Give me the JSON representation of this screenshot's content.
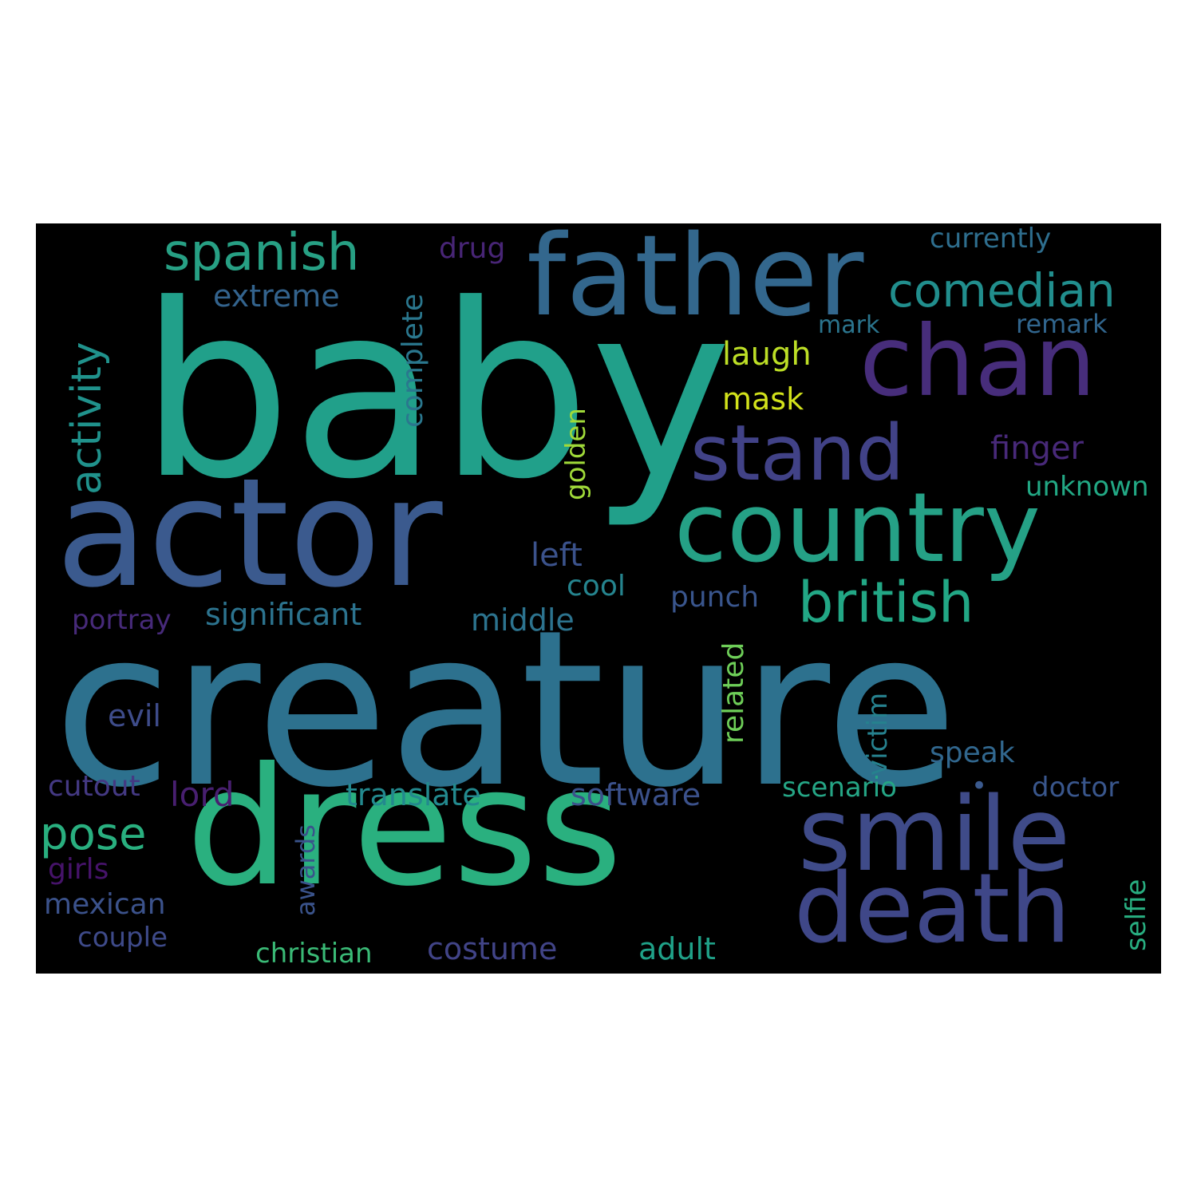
{
  "background": "#000000",
  "words": [
    {
      "id": "baby",
      "text": "baby",
      "color": "#21a08a"
    },
    {
      "id": "creature",
      "text": "creature",
      "color": "#2d718e"
    },
    {
      "id": "actor",
      "text": "actor",
      "color": "#3b5a8e"
    },
    {
      "id": "dress",
      "text": "dress",
      "color": "#2ab07f"
    },
    {
      "id": "father",
      "text": "father",
      "color": "#33678d"
    },
    {
      "id": "chan",
      "text": "chan",
      "color": "#472d7b"
    },
    {
      "id": "country",
      "text": "country",
      "color": "#25a186"
    },
    {
      "id": "smile",
      "text": "smile",
      "color": "#3f4b89"
    },
    {
      "id": "death",
      "text": "death",
      "color": "#3f4788"
    },
    {
      "id": "stand",
      "text": "stand",
      "color": "#414287"
    },
    {
      "id": "spanish",
      "text": "spanish",
      "color": "#27a084"
    },
    {
      "id": "comedian",
      "text": "comedian",
      "color": "#218e8d"
    },
    {
      "id": "british",
      "text": "british",
      "color": "#22a785"
    },
    {
      "id": "activity",
      "text": "activity",
      "color": "#20928c"
    },
    {
      "id": "pose",
      "text": "pose",
      "color": "#29af7f"
    },
    {
      "id": "significant",
      "text": "significant",
      "color": "#2c738e"
    },
    {
      "id": "translate",
      "text": "translate",
      "color": "#23898e"
    },
    {
      "id": "software",
      "text": "software",
      "color": "#3b518b"
    },
    {
      "id": "extreme",
      "text": "extreme",
      "color": "#33638d"
    },
    {
      "id": "drug",
      "text": "drug",
      "color": "#482576"
    },
    {
      "id": "currently",
      "text": "currently",
      "color": "#2e6e8e"
    },
    {
      "id": "mark",
      "text": "mark",
      "color": "#2b758e"
    },
    {
      "id": "remark",
      "text": "remark",
      "color": "#31668e"
    },
    {
      "id": "laugh",
      "text": "laugh",
      "color": "#bddf26"
    },
    {
      "id": "mask",
      "text": "mask",
      "color": "#d2e21b"
    },
    {
      "id": "complete",
      "text": "complete",
      "color": "#2a778e"
    },
    {
      "id": "finger",
      "text": "finger",
      "color": "#482979"
    },
    {
      "id": "golden",
      "text": "golden",
      "color": "#a0da39"
    },
    {
      "id": "unknown",
      "text": "unknown",
      "color": "#22a884"
    },
    {
      "id": "left",
      "text": "left",
      "color": "#3b528b"
    },
    {
      "id": "cool",
      "text": "cool",
      "color": "#25848e"
    },
    {
      "id": "punch",
      "text": "punch",
      "color": "#39558c"
    },
    {
      "id": "middle",
      "text": "middle",
      "color": "#2c738e"
    },
    {
      "id": "portray",
      "text": "portray",
      "color": "#472a7a"
    },
    {
      "id": "related",
      "text": "related",
      "color": "#6ece58"
    },
    {
      "id": "victim",
      "text": "victim",
      "color": "#26818e"
    },
    {
      "id": "evil",
      "text": "evil",
      "color": "#3e4c8a"
    },
    {
      "id": "speak",
      "text": "speak",
      "color": "#31678e"
    },
    {
      "id": "cutout",
      "text": "cutout",
      "color": "#443983"
    },
    {
      "id": "lord",
      "text": "lord",
      "color": "#481f70"
    },
    {
      "id": "scenario",
      "text": "scenario",
      "color": "#25a585"
    },
    {
      "id": "doctor",
      "text": "doctor",
      "color": "#39568c"
    },
    {
      "id": "selfie",
      "text": "selfie",
      "color": "#28ae80"
    },
    {
      "id": "girls",
      "text": "girls",
      "color": "#46136a"
    },
    {
      "id": "awards",
      "text": "awards",
      "color": "#3a538b"
    },
    {
      "id": "mexican",
      "text": "mexican",
      "color": "#3b528b"
    },
    {
      "id": "couple",
      "text": "couple",
      "color": "#3e4a89"
    },
    {
      "id": "christian",
      "text": "christian",
      "color": "#3aba76"
    },
    {
      "id": "costume",
      "text": "costume",
      "color": "#414487"
    },
    {
      "id": "adult",
      "text": "adult",
      "color": "#1fa188"
    },
    {
      "id": "dot",
      "text": "•",
      "color": "#3b5a8e"
    }
  ]
}
